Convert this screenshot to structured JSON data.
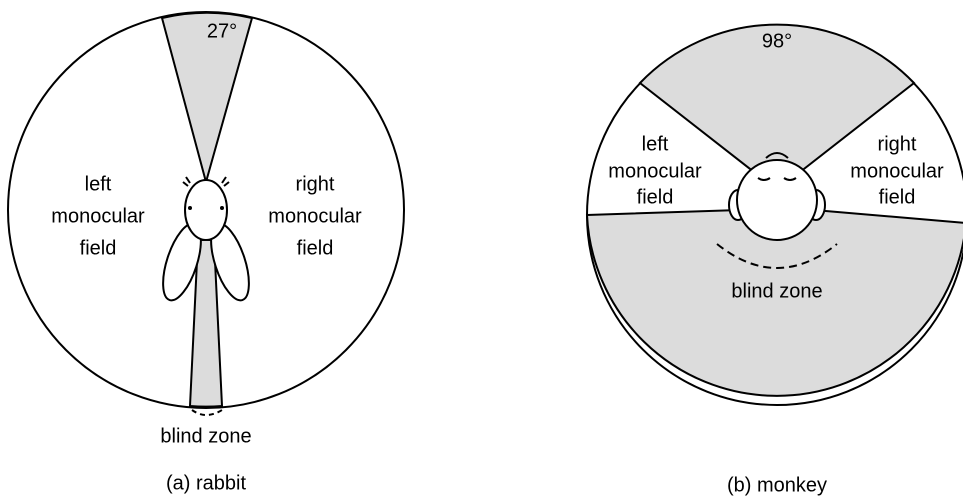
{
  "rabbit": {
    "angle": "27°",
    "left_label": [
      "left",
      "monocular",
      "field"
    ],
    "right_label": [
      "right",
      "monocular",
      "field"
    ],
    "blind_zone": "blind zone",
    "caption": "(a) rabbit"
  },
  "monkey": {
    "angle": "98°",
    "left_label": [
      "left",
      "monocular",
      "field"
    ],
    "right_label": [
      "right",
      "monocular",
      "field"
    ],
    "blind_zone": "blind zone",
    "caption": "(b) monkey"
  }
}
